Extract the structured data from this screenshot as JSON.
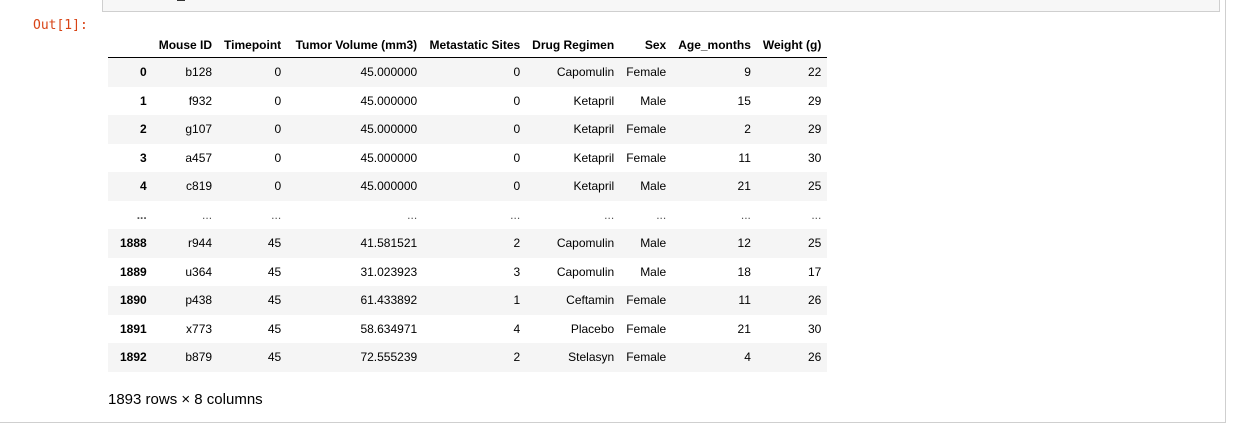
{
  "prompt": "Out[1]:",
  "table": {
    "columns": [
      "",
      "Mouse ID",
      "Timepoint",
      "Tumor Volume (mm3)",
      "Metastatic Sites",
      "Drug Regimen",
      "Sex",
      "Age_months",
      "Weight (g)"
    ],
    "rows": [
      [
        "0",
        "b128",
        "0",
        "45.000000",
        "0",
        "Capomulin",
        "Female",
        "9",
        "22"
      ],
      [
        "1",
        "f932",
        "0",
        "45.000000",
        "0",
        "Ketapril",
        "Male",
        "15",
        "29"
      ],
      [
        "2",
        "g107",
        "0",
        "45.000000",
        "0",
        "Ketapril",
        "Female",
        "2",
        "29"
      ],
      [
        "3",
        "a457",
        "0",
        "45.000000",
        "0",
        "Ketapril",
        "Female",
        "11",
        "30"
      ],
      [
        "4",
        "c819",
        "0",
        "45.000000",
        "0",
        "Ketapril",
        "Male",
        "21",
        "25"
      ],
      [
        "...",
        "...",
        "...",
        "...",
        "...",
        "...",
        "...",
        "...",
        "..."
      ],
      [
        "1888",
        "r944",
        "45",
        "41.581521",
        "2",
        "Capomulin",
        "Male",
        "12",
        "25"
      ],
      [
        "1889",
        "u364",
        "45",
        "31.023923",
        "3",
        "Capomulin",
        "Male",
        "18",
        "17"
      ],
      [
        "1890",
        "p438",
        "45",
        "61.433892",
        "1",
        "Ceftamin",
        "Female",
        "11",
        "26"
      ],
      [
        "1891",
        "x773",
        "45",
        "58.634971",
        "4",
        "Placebo",
        "Female",
        "21",
        "30"
      ],
      [
        "1892",
        "b879",
        "45",
        "72.555239",
        "2",
        "Stelasyn",
        "Female",
        "4",
        "26"
      ]
    ]
  },
  "summary": "1893 rows × 8 columns"
}
